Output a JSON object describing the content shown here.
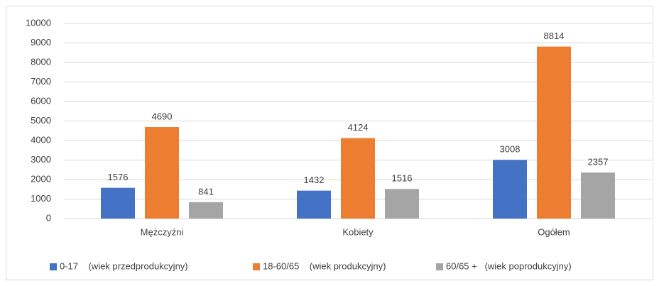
{
  "chart_data": {
    "type": "bar",
    "categories": [
      "Mężczyźni",
      "Kobiety",
      "Ogółem"
    ],
    "series": [
      {
        "name": "0-17    (wiek przedprodukcyjny)",
        "color": "#4472c4",
        "values": [
          1576,
          1432,
          3008
        ]
      },
      {
        "name": "18-60/65    (wiek produkcyjny)",
        "color": "#ed7d31",
        "values": [
          4690,
          4124,
          8814
        ]
      },
      {
        "name": "60/65 +   (wiek poprodukcyjny)",
        "color": "#a5a5a5",
        "values": [
          841,
          1516,
          2357
        ]
      }
    ],
    "ylim": [
      0,
      10000
    ],
    "yticks": [
      0,
      1000,
      2000,
      3000,
      4000,
      5000,
      6000,
      7000,
      8000,
      9000,
      10000
    ],
    "grid": true,
    "legend": "bottom"
  }
}
